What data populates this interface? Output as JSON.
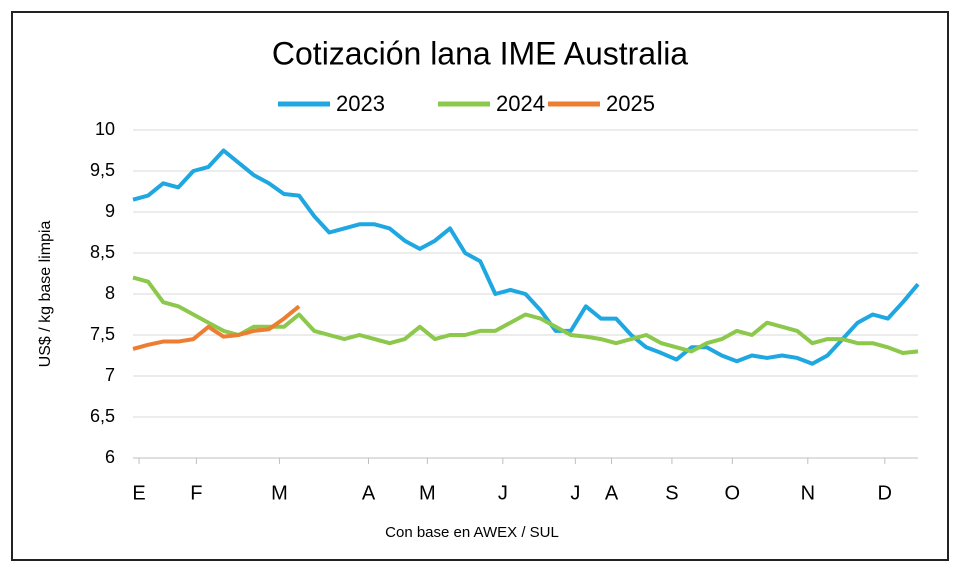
{
  "chart_data": {
    "type": "line",
    "title": "Cotización lana IME Australia",
    "y_label": "US$ / kg base limpia",
    "x_label": "Con base en AWEX / SUL",
    "x": [
      0,
      1,
      2,
      3,
      4,
      5,
      6,
      7,
      8,
      9,
      10,
      11,
      12,
      13,
      14,
      15,
      16,
      17,
      18,
      19,
      20,
      21,
      22,
      23,
      24,
      25,
      26,
      27,
      28,
      29,
      30,
      31,
      32,
      33,
      34,
      35,
      36,
      37,
      38,
      39,
      40,
      41,
      42,
      43,
      44,
      45,
      46,
      47,
      48,
      49,
      50,
      51,
      52
    ],
    "xlim": [
      0,
      52
    ],
    "xticks": [
      {
        "value": 0.4,
        "label": "E"
      },
      {
        "value": 4.2,
        "label": "F"
      },
      {
        "value": 9.7,
        "label": "M"
      },
      {
        "value": 15.6,
        "label": "A"
      },
      {
        "value": 19.5,
        "label": "M"
      },
      {
        "value": 24.5,
        "label": "J"
      },
      {
        "value": 29.3,
        "label": "J"
      },
      {
        "value": 31.7,
        "label": "A"
      },
      {
        "value": 35.7,
        "label": "S"
      },
      {
        "value": 39.7,
        "label": "O"
      },
      {
        "value": 44.7,
        "label": "N"
      },
      {
        "value": 49.8,
        "label": "D"
      }
    ],
    "ylim": [
      6,
      10
    ],
    "yticks": [
      6,
      {
        "value": 6.5,
        "label": "6,5"
      },
      7,
      {
        "value": 7.5,
        "label": "7,5"
      },
      8,
      {
        "value": 8.5,
        "label": "8,5"
      },
      9,
      {
        "value": 9.5,
        "label": "9,5"
      },
      10
    ],
    "grid": true,
    "series": [
      {
        "name": "2023",
        "color": "#1ea7e1",
        "values": [
          9.15,
          9.2,
          9.35,
          9.3,
          9.5,
          9.55,
          9.75,
          9.6,
          9.45,
          9.35,
          9.22,
          9.2,
          8.95,
          8.75,
          8.8,
          8.85,
          8.85,
          8.8,
          8.65,
          8.55,
          8.65,
          8.8,
          8.5,
          8.4,
          8.0,
          8.05,
          8.0,
          7.8,
          7.55,
          7.55,
          7.85,
          7.7,
          7.7,
          7.5,
          7.35,
          7.28,
          7.2,
          7.35,
          7.35,
          7.25,
          7.18,
          7.25,
          7.22,
          7.25,
          7.22,
          7.15,
          7.25,
          7.45,
          7.65,
          7.75,
          7.7,
          7.9,
          8.12
        ]
      },
      {
        "name": "2024",
        "color": "#8cc84b",
        "values": [
          8.2,
          8.15,
          7.9,
          7.85,
          7.75,
          7.65,
          7.55,
          7.5,
          7.6,
          7.6,
          7.6,
          7.75,
          7.55,
          7.5,
          7.45,
          7.5,
          7.45,
          7.4,
          7.45,
          7.6,
          7.45,
          7.5,
          7.5,
          7.55,
          7.55,
          7.65,
          7.75,
          7.7,
          7.6,
          7.5,
          7.48,
          7.45,
          7.4,
          7.45,
          7.5,
          7.4,
          7.35,
          7.3,
          7.4,
          7.45,
          7.55,
          7.5,
          7.65,
          7.6,
          7.55,
          7.4,
          7.45,
          7.45,
          7.4,
          7.4,
          7.35,
          7.28,
          7.3
        ]
      },
      {
        "name": "2025",
        "color": "#ed7d31",
        "values": [
          7.33,
          7.38,
          7.42,
          7.42,
          7.45,
          7.6,
          7.48,
          7.5,
          7.55,
          7.57,
          7.7,
          7.85,
          null,
          null,
          null,
          null,
          null,
          null,
          null,
          null,
          null,
          null,
          null,
          null,
          null,
          null,
          null,
          null,
          null,
          null,
          null,
          null,
          null,
          null,
          null,
          null,
          null,
          null,
          null,
          null,
          null,
          null,
          null,
          null,
          null,
          null,
          null,
          null,
          null,
          null,
          null,
          null,
          null
        ]
      }
    ]
  }
}
